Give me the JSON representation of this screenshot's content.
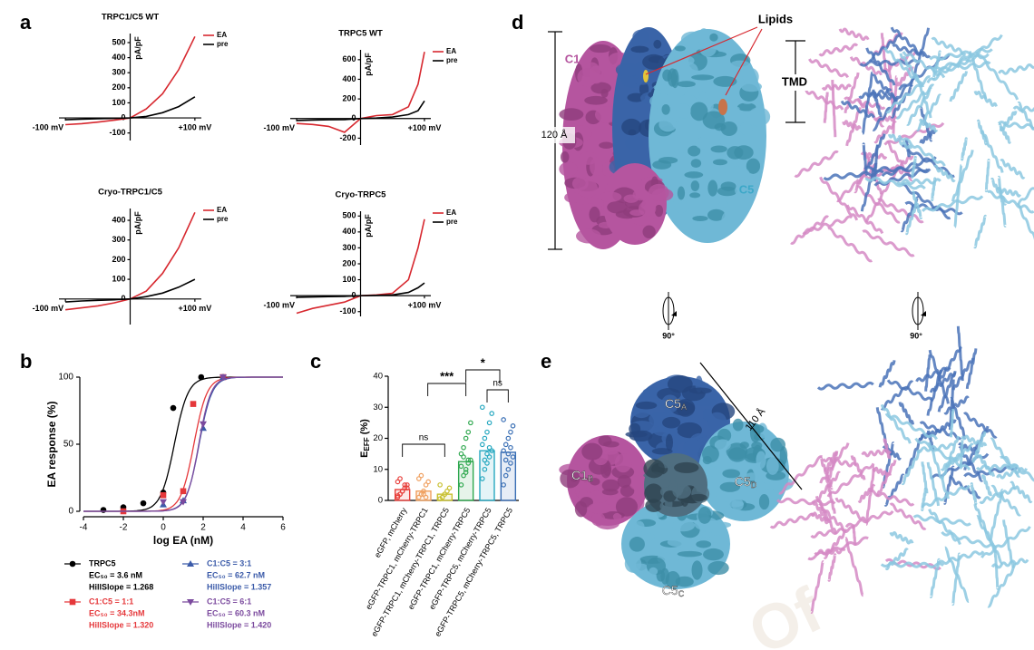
{
  "panel_labels": {
    "a": "a",
    "b": "b",
    "c": "c",
    "d": "d",
    "e": "e"
  },
  "chart_data": [
    {
      "type": "line",
      "title": "TRPC1/C5 WT",
      "ylabel": "pA/pF",
      "x": [
        -100,
        -75,
        -50,
        -25,
        0,
        25,
        50,
        75,
        100
      ],
      "series": [
        {
          "name": "EA",
          "color": "#d7282f",
          "values": [
            -45,
            -38,
            -28,
            -15,
            0,
            60,
            160,
            320,
            540
          ]
        },
        {
          "name": "pre",
          "color": "#000000",
          "values": [
            -12,
            -8,
            -5,
            -3,
            0,
            10,
            35,
            75,
            140
          ]
        }
      ],
      "xlim": [
        -110,
        110
      ],
      "ylim": [
        -150,
        560
      ],
      "xticks": [
        {
          "value": -100,
          "label": "-100 mV"
        },
        {
          "value": 100,
          "label": "+100 mV"
        }
      ],
      "yticks": [
        -100,
        0,
        100,
        200,
        300,
        400,
        500
      ]
    },
    {
      "type": "line",
      "title": "TRPC5 WT",
      "ylabel": "pA/pF",
      "x": [
        -100,
        -75,
        -50,
        -25,
        0,
        25,
        50,
        75,
        90,
        100
      ],
      "series": [
        {
          "name": "EA",
          "color": "#d7282f",
          "values": [
            -50,
            -60,
            -80,
            -140,
            0,
            30,
            40,
            120,
            350,
            680
          ]
        },
        {
          "name": "pre",
          "color": "#000000",
          "values": [
            -20,
            -15,
            -12,
            -10,
            0,
            5,
            15,
            40,
            80,
            180
          ]
        }
      ],
      "xlim": [
        -110,
        110
      ],
      "ylim": [
        -270,
        700
      ],
      "xticks": [
        {
          "value": -100,
          "label": "-100 mV"
        },
        {
          "value": 100,
          "label": "+100 mV"
        }
      ],
      "yticks": [
        -200,
        0,
        200,
        400,
        600
      ]
    },
    {
      "type": "line",
      "title": "Cryo-TRPC1/C5",
      "ylabel": "pA/pF",
      "x": [
        -100,
        -75,
        -50,
        -25,
        0,
        25,
        50,
        75,
        100
      ],
      "series": [
        {
          "name": "EA",
          "color": "#d7282f",
          "values": [
            -55,
            -45,
            -35,
            -20,
            0,
            40,
            130,
            260,
            440
          ]
        },
        {
          "name": "pre",
          "color": "#000000",
          "values": [
            -15,
            -10,
            -7,
            -4,
            0,
            12,
            30,
            60,
            100
          ]
        }
      ],
      "xlim": [
        -110,
        110
      ],
      "ylim": [
        -130,
        460
      ],
      "xticks": [
        {
          "value": -100,
          "label": "-100 mV"
        },
        {
          "value": 100,
          "label": "+100 mV"
        }
      ],
      "yticks": [
        0,
        100,
        200,
        300,
        400
      ]
    },
    {
      "type": "line",
      "title": "Cryo-TRPC5",
      "ylabel": "pA/pF",
      "x": [
        -100,
        -75,
        -50,
        -25,
        0,
        25,
        50,
        75,
        90,
        100
      ],
      "series": [
        {
          "name": "EA",
          "color": "#d7282f",
          "values": [
            -110,
            -80,
            -60,
            -40,
            0,
            5,
            15,
            100,
            300,
            480
          ]
        },
        {
          "name": "pre",
          "color": "#000000",
          "values": [
            -10,
            -8,
            -6,
            -4,
            0,
            2,
            5,
            20,
            50,
            80
          ]
        }
      ],
      "xlim": [
        -110,
        110
      ],
      "ylim": [
        -130,
        530
      ],
      "xticks": [
        {
          "value": -100,
          "label": "-100 mV"
        },
        {
          "value": 100,
          "label": "+100 mV"
        }
      ],
      "yticks": [
        -100,
        0,
        100,
        200,
        300,
        400,
        500
      ]
    },
    {
      "type": "scatter",
      "xlabel": "log EA (nM)",
      "ylabel": "EA response (%)",
      "xlim": [
        -4,
        6
      ],
      "ylim": [
        0,
        100
      ],
      "xticks": [
        -4,
        -2,
        0,
        2,
        4,
        6
      ],
      "yticks": [
        0,
        50,
        100
      ],
      "series": [
        {
          "name": "TRPC5",
          "color": "#000000",
          "marker": "circle",
          "x": [
            -3,
            -2,
            -1,
            0,
            0.5,
            1.9
          ],
          "values": [
            1,
            3,
            6,
            14,
            77,
            100
          ],
          "fit": {
            "ec50": 3.6,
            "hill_slope": 1.268,
            "ec50_label": "EC₅₀ = 3.6 nM",
            "hill_label": "HillSlope = 1.268"
          }
        },
        {
          "name": "C1:C5 = 1:1",
          "color": "#e5383b",
          "marker": "square",
          "x": [
            -2,
            0,
            1,
            1.5,
            3
          ],
          "values": [
            0,
            12,
            15,
            80,
            100
          ],
          "fit": {
            "ec50": 34.3,
            "hill_slope": 1.32,
            "ec50_label": "EC₅₀ = 34.3nM",
            "hill_label": "HillSlope = 1.320"
          }
        },
        {
          "name": "C1:C5 = 3:1",
          "color": "#3b5ba9",
          "marker": "triangle-up",
          "x": [
            0,
            1,
            2,
            3
          ],
          "values": [
            5,
            8,
            62,
            100
          ],
          "fit": {
            "ec50": 62.7,
            "hill_slope": 1.357,
            "ec50_label": "EC₅₀ = 62.7 nM",
            "hill_label": "HillSlope = 1.357"
          }
        },
        {
          "name": "C1:C5 = 6:1",
          "color": "#7b4a9e",
          "marker": "triangle-down",
          "x": [
            0,
            1,
            2,
            3
          ],
          "values": [
            7,
            7,
            65,
            100
          ],
          "fit": {
            "ec50": 60.3,
            "hill_slope": 1.42,
            "ec50_label": "EC₅₀ = 60.3 nM",
            "hill_label": "HillSlope = 1.420"
          }
        }
      ]
    },
    {
      "type": "bar",
      "ylabel": "E",
      "ylabel_sub": "EFF",
      "ylabel_unit": " (%)",
      "categories": [
        "eGFP, mCherry",
        "eGFP-TRPC1, mCherry-TRPC1",
        "eGFP-TRPC1, mCherry-TRPC1, TRPC5",
        "eGFP-TRPC1, mCherry-TRPC5",
        "eGFP-TRPC5, mCherry-TRPC5",
        "eGFP-TRPC5, mCherry-TRPC5, TRPC5"
      ],
      "values": [
        3.5,
        3,
        2,
        12.5,
        16,
        15.5
      ],
      "colors": [
        "#e8403c",
        "#f0a060",
        "#c8c030",
        "#2fa84f",
        "#26a8c0",
        "#3a6fb5"
      ],
      "points": [
        [
          1,
          2,
          3,
          4,
          5,
          6,
          2,
          3,
          5,
          4,
          1.5,
          7
        ],
        [
          1,
          2,
          3,
          5,
          6,
          7,
          8,
          2,
          1
        ],
        [
          0.5,
          1,
          2,
          3,
          4,
          5,
          1,
          2
        ],
        [
          5,
          8,
          10,
          12,
          13,
          15,
          17,
          20,
          22,
          25,
          11,
          14,
          9,
          13
        ],
        [
          7,
          10,
          12,
          14,
          16,
          18,
          20,
          22,
          25,
          28,
          30,
          13,
          15,
          17
        ],
        [
          5,
          8,
          10,
          12,
          14,
          16,
          18,
          20,
          22,
          24,
          26,
          13,
          15,
          17
        ]
      ],
      "annotations": [
        "ns",
        "***",
        "*",
        "ns"
      ],
      "ylim": [
        0,
        40
      ],
      "yticks": [
        0,
        10,
        20,
        30,
        40
      ]
    }
  ],
  "structure": {
    "lipids": "Lipids",
    "c1": "C1",
    "c5": "C5",
    "tmd": "TMD",
    "height": "120 Å",
    "rotation_1": "90°",
    "rotation_2": "90°",
    "width": "110 Å",
    "subunits": [
      {
        "main": "C5",
        "sub": "A"
      },
      {
        "main": "C1",
        "sub": "B"
      },
      {
        "main": "C5",
        "sub": "D"
      },
      {
        "main": "C5",
        "sub": "C"
      }
    ]
  },
  "watermark": "Of"
}
